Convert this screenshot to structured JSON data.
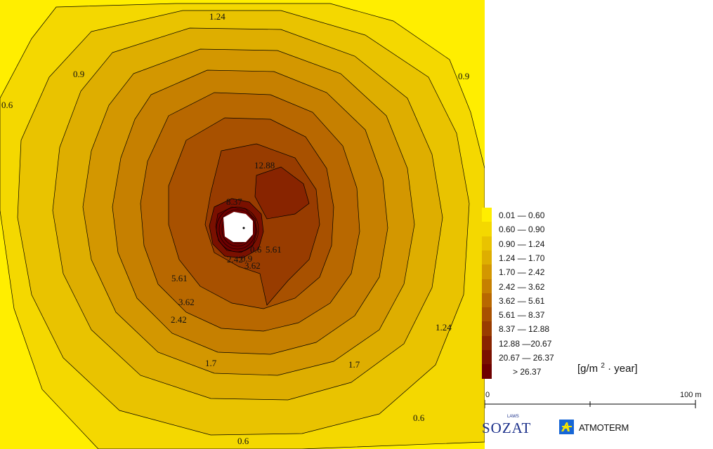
{
  "map": {
    "contour_labels": [
      "1.24",
      "0.9",
      "0.9",
      "0.6",
      "12.88",
      "8.37",
      "0.6",
      "5.61",
      "2.42",
      "0.9",
      "3.62",
      "5.61",
      "3.62",
      "2.42",
      "1.24",
      "1.7",
      "1.7",
      "0.6",
      "0.6"
    ],
    "colors": {
      "c1": "#ffee00",
      "c2": "#f4d800",
      "c3": "#e9c300",
      "c4": "#deae00",
      "c5": "#d39700",
      "c6": "#c68000",
      "c7": "#b86800",
      "c8": "#a85100",
      "c9": "#983c00",
      "c10": "#882400",
      "c11": "#7a1000",
      "c12": "#6e0000"
    }
  },
  "legend": {
    "items": [
      {
        "label": "0.01 — 0.60",
        "color": "#ffee00"
      },
      {
        "label": "0.60 — 0.90",
        "color": "#f4d800"
      },
      {
        "label": "0.90 — 1.24",
        "color": "#e9c300"
      },
      {
        "label": "1.24 — 1.70",
        "color": "#deae00"
      },
      {
        "label": "1.70 — 2.42",
        "color": "#d39700"
      },
      {
        "label": "2.42 — 3.62",
        "color": "#c68000"
      },
      {
        "label": "3.62 — 5.61",
        "color": "#b86800"
      },
      {
        "label": "5.61 — 8.37",
        "color": "#a85100"
      },
      {
        "label": "8.37 — 12.88",
        "color": "#983c00"
      },
      {
        "label": "12.88 —20.67",
        "color": "#882400"
      },
      {
        "label": "20.67 — 26.37",
        "color": "#7a1000"
      },
      {
        "label": "> 26.37",
        "color": "#6e0000"
      }
    ],
    "unit_prefix": "[g/m",
    "unit_exp": "2",
    "unit_suffix": "· year]"
  },
  "scale": {
    "start_label": "0",
    "end_label": "100 m"
  },
  "logos": {
    "sozat": "SOZAT",
    "sozat_small": "LAWS",
    "atmoterm": "ATMOTERM"
  }
}
